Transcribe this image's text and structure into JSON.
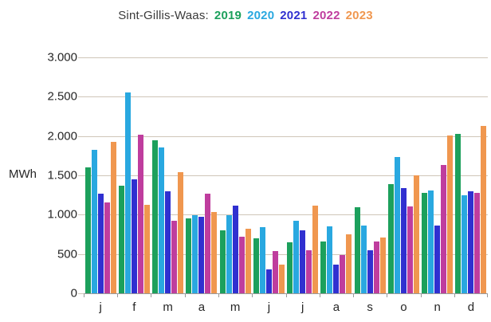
{
  "title": {
    "prefix": "Sint-Gillis-Waas:"
  },
  "y_axis": {
    "unit_label": "MWh",
    "tick_labels": [
      "3.000",
      "2.500",
      "2.000",
      "1.500",
      "1.000",
      "500",
      "0"
    ]
  },
  "x_axis": {
    "month_labels": [
      "j",
      "f",
      "m",
      "a",
      "m",
      "j",
      "j",
      "a",
      "s",
      "o",
      "n",
      "d"
    ]
  },
  "colors": {
    "gridline": "#cfc6b8",
    "axis": "#9a9a9a",
    "text": "#262626"
  },
  "chart_data": {
    "type": "bar",
    "title": "Sint-Gillis-Waas: 2019 2020 2021 2022 2023",
    "xlabel": "",
    "ylabel": "MWh",
    "ylim": [
      0,
      3000
    ],
    "grid": true,
    "gridline_interval": 500,
    "legend_position": "in-title",
    "categories": [
      "j",
      "f",
      "m",
      "a",
      "m",
      "j",
      "j",
      "a",
      "s",
      "o",
      "n",
      "d"
    ],
    "series": [
      {
        "name": "2019",
        "color": "#1ca05c",
        "values": [
          1600,
          1370,
          1950,
          950,
          800,
          700,
          650,
          660,
          1090,
          1390,
          1280,
          2030
        ]
      },
      {
        "name": "2020",
        "color": "#29a8e0",
        "values": [
          1820,
          2550,
          1850,
          990,
          990,
          840,
          920,
          850,
          860,
          1730,
          1310,
          1250
        ]
      },
      {
        "name": "2021",
        "color": "#3030d0",
        "values": [
          1270,
          1450,
          1300,
          970,
          1120,
          300,
          800,
          360,
          550,
          1340,
          860,
          1300
        ]
      },
      {
        "name": "2022",
        "color": "#bf3d9e",
        "values": [
          1160,
          2020,
          920,
          1270,
          720,
          540,
          550,
          490,
          660,
          1100,
          1630,
          1280
        ]
      },
      {
        "name": "2023",
        "color": "#f0974f",
        "values": [
          1930,
          1130,
          1540,
          1030,
          820,
          370,
          1120,
          750,
          710,
          1500,
          2010,
          2130
        ]
      }
    ]
  }
}
